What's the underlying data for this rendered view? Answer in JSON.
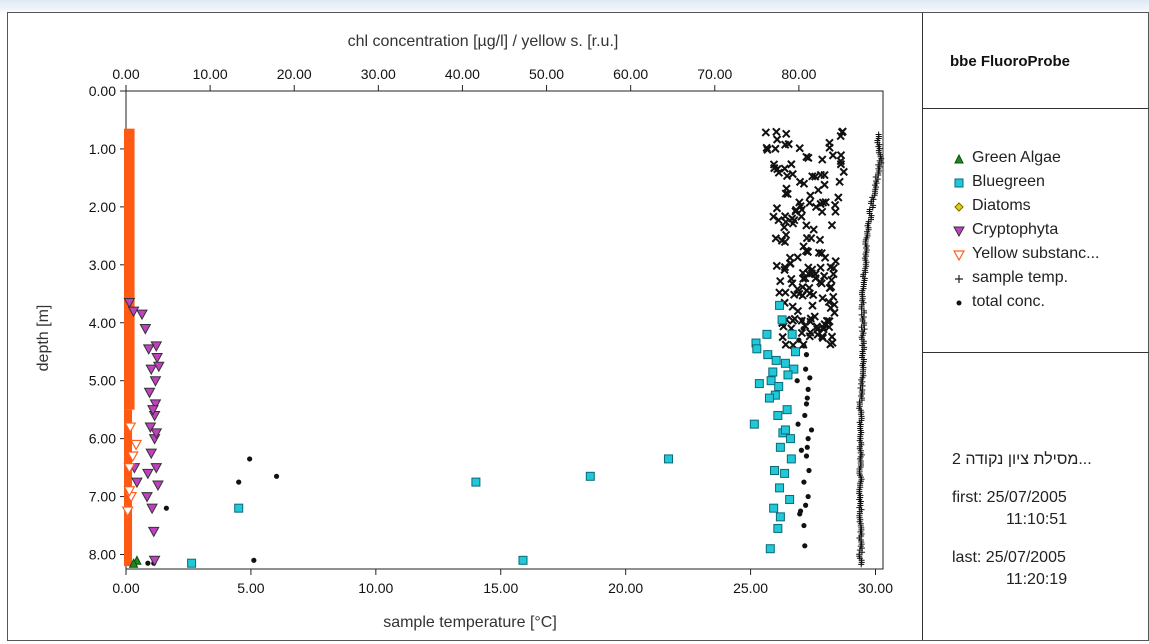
{
  "app": {
    "brand": "bbe FluoroProbe",
    "location": "...מסילת ציון נקודה 2",
    "first_label": "first:",
    "first_date": "25/07/2005",
    "first_time": "11:10:51",
    "last_label": "last:",
    "last_date": "25/07/2005",
    "last_time": "11:20:19"
  },
  "legend": [
    {
      "label": "Green Algae",
      "icon": "triangle-up",
      "color": "#1a8a1a"
    },
    {
      "label": "Bluegreen",
      "icon": "square",
      "color": "#20c8d8"
    },
    {
      "label": "Diatoms",
      "icon": "diamond",
      "color": "#e8d000"
    },
    {
      "label": "Cryptophyta",
      "icon": "triangle-down",
      "color": "#c040c0"
    },
    {
      "label": "Yellow substanc...",
      "icon": "triangle-down-open",
      "color": "#ff6020"
    },
    {
      "label": "sample temp.",
      "icon": "plus",
      "color": "#222222"
    },
    {
      "label": "total conc.",
      "icon": "dot",
      "color": "#111111"
    }
  ],
  "chart_data": {
    "type": "scatter",
    "title": "chl concentration [µg/l] / yellow s. [r.u.]",
    "xlabel": "sample temperature [°C]",
    "ylabel": "depth [m]",
    "x_top": {
      "ticks": [
        "0.00",
        "10.00",
        "20.00",
        "30.00",
        "40.00",
        "50.00",
        "60.00",
        "70.00",
        "80.00"
      ],
      "range": [
        0,
        90
      ]
    },
    "x_bottom": {
      "ticks": [
        "0.00",
        "5.00",
        "10.00",
        "15.00",
        "20.00",
        "25.00",
        "30.00"
      ],
      "range": [
        0,
        30.3
      ]
    },
    "y": {
      "ticks": [
        "0.00",
        "1.00",
        "2.00",
        "3.00",
        "4.00",
        "5.00",
        "6.00",
        "7.00",
        "8.00"
      ],
      "range": [
        0,
        8.25
      ],
      "inverted": true
    },
    "grid": false,
    "series": [
      {
        "name": "total conc.",
        "axis": "top",
        "points": [
          [
            14.7,
            6.35
          ],
          [
            17.9,
            6.65
          ],
          [
            13.4,
            6.75
          ],
          [
            4.8,
            7.2
          ],
          [
            15.2,
            8.1
          ],
          [
            3.3,
            8.15
          ],
          [
            2.6,
            8.15
          ],
          [
            80.9,
            4.55
          ],
          [
            80.8,
            4.8
          ],
          [
            79.8,
            5.0
          ],
          [
            81.1,
            5.15
          ],
          [
            81.0,
            5.3
          ],
          [
            80.6,
            4.4
          ],
          [
            80.0,
            4.3
          ],
          [
            80.7,
            5.6
          ],
          [
            81.5,
            5.85
          ],
          [
            81.1,
            6.0
          ],
          [
            80.9,
            6.3
          ],
          [
            81.2,
            6.55
          ],
          [
            80.6,
            6.75
          ],
          [
            81.1,
            7.0
          ],
          [
            80.2,
            7.25
          ],
          [
            80.6,
            7.5
          ],
          [
            80.7,
            7.85
          ],
          [
            80.1,
            7.3
          ],
          [
            80.9,
            5.4
          ],
          [
            80.3,
            6.2
          ],
          [
            80.5,
            4.1
          ],
          [
            79.9,
            5.75
          ],
          [
            81.3,
            4.95
          ],
          [
            80.4,
            3.95
          ],
          [
            81.0,
            6.15
          ],
          [
            80.8,
            7.15
          ]
        ]
      },
      {
        "name": "Bluegreen",
        "axis": "top",
        "points": [
          [
            41.6,
            6.75
          ],
          [
            55.2,
            6.65
          ],
          [
            64.5,
            6.35
          ],
          [
            13.4,
            7.2
          ],
          [
            7.8,
            8.15
          ],
          [
            47.2,
            8.1
          ],
          [
            74.9,
            4.35
          ],
          [
            75.0,
            4.45
          ],
          [
            75.3,
            5.05
          ],
          [
            74.7,
            5.75
          ],
          [
            76.3,
            4.55
          ],
          [
            77.3,
            4.65
          ],
          [
            78.4,
            4.7
          ],
          [
            76.7,
            5.0
          ],
          [
            77.2,
            5.25
          ],
          [
            78.6,
            5.5
          ],
          [
            78.1,
            5.9
          ],
          [
            79.0,
            6.0
          ],
          [
            77.8,
            6.15
          ],
          [
            77.1,
            6.55
          ],
          [
            77.7,
            6.85
          ],
          [
            78.9,
            7.05
          ],
          [
            77.8,
            7.35
          ],
          [
            77.5,
            7.55
          ],
          [
            76.6,
            7.9
          ],
          [
            79.2,
            4.2
          ],
          [
            78.0,
            3.95
          ],
          [
            77.7,
            3.7
          ],
          [
            79.4,
            4.8
          ],
          [
            76.5,
            5.3
          ],
          [
            78.3,
            6.6
          ],
          [
            77.0,
            7.2
          ],
          [
            78.7,
            4.9
          ],
          [
            76.9,
            4.85
          ],
          [
            77.5,
            5.6
          ],
          [
            79.1,
            6.35
          ],
          [
            76.2,
            4.2
          ],
          [
            77.6,
            5.1
          ],
          [
            78.4,
            5.85
          ],
          [
            79.6,
            4.5
          ]
        ]
      },
      {
        "name": "Cryptophyta",
        "axis": "top",
        "points": [
          [
            0.4,
            3.65
          ],
          [
            0.9,
            3.8
          ],
          [
            1.9,
            3.85
          ],
          [
            2.3,
            4.1
          ],
          [
            3.6,
            4.4
          ],
          [
            3.7,
            4.6
          ],
          [
            3.0,
            4.8
          ],
          [
            3.5,
            5.0
          ],
          [
            2.8,
            5.2
          ],
          [
            3.5,
            5.4
          ],
          [
            3.4,
            5.6
          ],
          [
            2.9,
            5.8
          ],
          [
            3.4,
            6.0
          ],
          [
            3.0,
            6.25
          ],
          [
            3.6,
            6.5
          ],
          [
            2.6,
            6.6
          ],
          [
            3.8,
            6.8
          ],
          [
            2.5,
            7.0
          ],
          [
            3.1,
            7.2
          ],
          [
            3.3,
            7.6
          ],
          [
            3.4,
            8.1
          ],
          [
            1.3,
            6.75
          ],
          [
            1.0,
            6.5
          ],
          [
            3.9,
            4.75
          ],
          [
            2.7,
            4.45
          ],
          [
            3.2,
            5.5
          ],
          [
            3.6,
            5.9
          ]
        ]
      },
      {
        "name": "Yellow substance",
        "axis": "top",
        "points": [
          [
            0.5,
            5.8
          ],
          [
            0.8,
            6.3
          ],
          [
            0.4,
            6.5
          ],
          [
            0.6,
            7.0
          ],
          [
            0.2,
            7.25
          ],
          [
            1.2,
            6.1
          ],
          [
            0.4,
            6.9
          ]
        ]
      },
      {
        "name": "Green Algae",
        "axis": "top",
        "points": [
          [
            1.3,
            8.1
          ],
          [
            0.9,
            8.15
          ]
        ]
      }
    ],
    "bands": [
      {
        "name": "Yellow substance",
        "axis": "top",
        "x_range": [
          0.0,
          0.9
        ],
        "y_range": [
          0.65,
          5.5
        ]
      },
      {
        "name": "Yellow substance",
        "axis": "top",
        "x_range": [
          0.0,
          0.6
        ],
        "y_range": [
          5.5,
          8.2
        ]
      }
    ],
    "cloud": {
      "name": "total conc.",
      "axis": "top",
      "x_range": [
        76,
        86
      ],
      "y_range": [
        0.7,
        4.4
      ]
    },
    "temperature_profile": {
      "name": "sample temp.",
      "axis": "bottom",
      "points": [
        [
          30.1,
          0.75
        ],
        [
          30.2,
          1.2
        ],
        [
          30.0,
          1.6
        ],
        [
          29.8,
          2.1
        ],
        [
          29.6,
          2.8
        ],
        [
          29.5,
          3.6
        ],
        [
          29.5,
          4.5
        ],
        [
          29.4,
          5.5
        ],
        [
          29.4,
          6.5
        ],
        [
          29.4,
          7.5
        ],
        [
          29.4,
          8.2
        ]
      ]
    }
  }
}
